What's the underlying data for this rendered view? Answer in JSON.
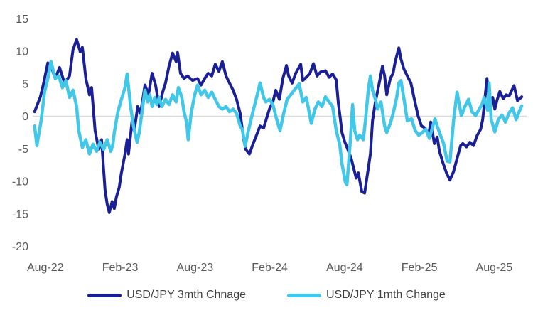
{
  "chart_data": {
    "type": "line",
    "title": "",
    "x_unit": "months since Aug-2022 (0 = Aug-22 tick)",
    "x_axis": {
      "min": -0.9,
      "max": 38.6,
      "ticks": [
        {
          "m": 0,
          "label": "Aug-22"
        },
        {
          "m": 6,
          "label": "Feb-23"
        },
        {
          "m": 12,
          "label": "Aug-23"
        },
        {
          "m": 18,
          "label": "Feb-24"
        },
        {
          "m": 24,
          "label": "Aug-24"
        },
        {
          "m": 30,
          "label": "Feb-25"
        },
        {
          "m": 36,
          "label": "Aug-25"
        }
      ]
    },
    "y_axis": {
      "min": -20,
      "max": 15,
      "step": 5,
      "tick_values": [
        15,
        10,
        5,
        0,
        -5,
        -10,
        -15,
        -20
      ],
      "gridline_values": [
        0
      ]
    },
    "legend_position": "bottom",
    "series": [
      {
        "name": "USD/JPY 3mth Chnage",
        "color": "#1A1F96",
        "stroke_width": 4,
        "points": [
          [
            -0.86,
            0.7
          ],
          [
            -0.4,
            3.0
          ],
          [
            -0.17,
            4.8
          ],
          [
            0.2,
            8.2
          ],
          [
            0.45,
            7.8
          ],
          [
            0.8,
            5.8
          ],
          [
            1.14,
            7.5
          ],
          [
            1.54,
            5.1
          ],
          [
            1.94,
            6.2
          ],
          [
            2.22,
            10.2
          ],
          [
            2.51,
            11.8
          ],
          [
            2.8,
            9.9
          ],
          [
            2.97,
            10.6
          ],
          [
            3.25,
            5.8
          ],
          [
            3.54,
            3.3
          ],
          [
            3.71,
            4.4
          ],
          [
            3.99,
            -2.2
          ],
          [
            4.28,
            -5.1
          ],
          [
            4.51,
            -3.6
          ],
          [
            4.79,
            -11.3
          ],
          [
            4.96,
            -13.5
          ],
          [
            5.13,
            -14.8
          ],
          [
            5.36,
            -13.1
          ],
          [
            5.53,
            -14.2
          ],
          [
            5.7,
            -12.4
          ],
          [
            5.93,
            -10.9
          ],
          [
            6.1,
            -8.7
          ],
          [
            6.39,
            -5.8
          ],
          [
            6.56,
            -3.6
          ],
          [
            6.67,
            -5.8
          ],
          [
            6.96,
            -0.7
          ],
          [
            7.13,
            -2.2
          ],
          [
            7.41,
            1.5
          ],
          [
            7.64,
            0.4
          ],
          [
            7.99,
            4.8
          ],
          [
            8.27,
            3.3
          ],
          [
            8.56,
            6.6
          ],
          [
            8.84,
            4.8
          ],
          [
            9.13,
            1.5
          ],
          [
            9.41,
            3.7
          ],
          [
            9.64,
            5.1
          ],
          [
            9.92,
            7.7
          ],
          [
            10.21,
            9.7
          ],
          [
            10.49,
            8.4
          ],
          [
            10.61,
            9.8
          ],
          [
            10.84,
            6.6
          ],
          [
            11.12,
            5.8
          ],
          [
            11.41,
            6.2
          ],
          [
            11.81,
            5.5
          ],
          [
            12.21,
            5.8
          ],
          [
            12.49,
            4.8
          ],
          [
            12.78,
            5.8
          ],
          [
            13.06,
            6.6
          ],
          [
            13.35,
            6.2
          ],
          [
            13.63,
            8.0
          ],
          [
            13.92,
            6.9
          ],
          [
            14.2,
            8.4
          ],
          [
            14.49,
            6.2
          ],
          [
            14.77,
            5.1
          ],
          [
            15.06,
            4.0
          ],
          [
            15.34,
            2.6
          ],
          [
            15.63,
            0.4
          ],
          [
            15.91,
            -3.6
          ],
          [
            16.08,
            -5.1
          ],
          [
            16.37,
            -5.8
          ],
          [
            16.65,
            -4.3
          ],
          [
            16.94,
            -2.9
          ],
          [
            17.22,
            -1.5
          ],
          [
            17.51,
            -1.8
          ],
          [
            17.68,
            -0.7
          ],
          [
            17.97,
            1.1
          ],
          [
            18.25,
            2.2
          ],
          [
            18.48,
            4.0
          ],
          [
            18.77,
            2.6
          ],
          [
            19.05,
            5.8
          ],
          [
            19.34,
            7.8
          ],
          [
            19.51,
            6.2
          ],
          [
            19.79,
            5.1
          ],
          [
            20.08,
            6.6
          ],
          [
            20.48,
            8.0
          ],
          [
            20.65,
            5.5
          ],
          [
            20.93,
            6.0
          ],
          [
            21.22,
            6.6
          ],
          [
            21.5,
            8.1
          ],
          [
            21.79,
            6.2
          ],
          [
            22.07,
            6.8
          ],
          [
            22.47,
            7.0
          ],
          [
            22.76,
            6.0
          ],
          [
            23.04,
            6.5
          ],
          [
            23.33,
            5.6
          ],
          [
            23.5,
            2.0
          ],
          [
            23.61,
            0.4
          ],
          [
            23.79,
            -2.5
          ],
          [
            24.01,
            -3.9
          ],
          [
            24.24,
            -5.0
          ],
          [
            24.53,
            -6.5
          ],
          [
            24.93,
            -9.5
          ],
          [
            25.1,
            -8.7
          ],
          [
            25.38,
            -11.6
          ],
          [
            25.61,
            -11.8
          ],
          [
            26.07,
            -5.8
          ],
          [
            26.24,
            -0.7
          ],
          [
            26.47,
            2.2
          ],
          [
            26.75,
            4.8
          ],
          [
            27.04,
            7.7
          ],
          [
            27.21,
            6.2
          ],
          [
            27.38,
            3.3
          ],
          [
            27.67,
            5.8
          ],
          [
            27.89,
            6.6
          ],
          [
            28.06,
            8.4
          ],
          [
            28.35,
            10.5
          ],
          [
            28.52,
            8.8
          ],
          [
            28.75,
            7.3
          ],
          [
            29.03,
            6.2
          ],
          [
            29.32,
            5.1
          ],
          [
            29.6,
            2.6
          ],
          [
            29.89,
            0.1
          ],
          [
            30.17,
            -1.5
          ],
          [
            30.46,
            -1.8
          ],
          [
            30.74,
            -2.9
          ],
          [
            30.91,
            -0.9
          ],
          [
            31.2,
            -4.2
          ],
          [
            31.43,
            -3.2
          ],
          [
            31.6,
            -5.3
          ],
          [
            31.88,
            -7.1
          ],
          [
            32.17,
            -8.7
          ],
          [
            32.45,
            -9.8
          ],
          [
            32.74,
            -8.5
          ],
          [
            33.02,
            -6.5
          ],
          [
            33.31,
            -4.5
          ],
          [
            33.48,
            -4.2
          ],
          [
            33.77,
            -4.7
          ],
          [
            34.05,
            -4.0
          ],
          [
            34.34,
            -4.5
          ],
          [
            34.62,
            -3.0
          ],
          [
            34.91,
            -2.0
          ],
          [
            35.08,
            -0.5
          ],
          [
            35.25,
            2.6
          ],
          [
            35.42,
            5.8
          ],
          [
            35.65,
            1.5
          ],
          [
            35.88,
            2.9
          ],
          [
            36.05,
            1.1
          ],
          [
            36.22,
            2.4
          ],
          [
            36.45,
            3.8
          ],
          [
            36.73,
            2.7
          ],
          [
            36.96,
            3.3
          ],
          [
            37.19,
            3.1
          ],
          [
            37.59,
            4.7
          ],
          [
            37.87,
            2.4
          ],
          [
            38.21,
            3.0
          ]
        ]
      },
      {
        "name": "USD/JPY 1mth Change",
        "color": "#41C7E8",
        "stroke_width": 4.5,
        "points": [
          [
            -0.86,
            -1.5
          ],
          [
            -0.68,
            -4.5
          ],
          [
            -0.34,
            -0.7
          ],
          [
            -0.06,
            3.7
          ],
          [
            0.23,
            6.0
          ],
          [
            0.45,
            8.4
          ],
          [
            0.8,
            5.8
          ],
          [
            1.08,
            6.2
          ],
          [
            1.37,
            4.4
          ],
          [
            1.65,
            5.5
          ],
          [
            1.94,
            2.9
          ],
          [
            2.22,
            4.0
          ],
          [
            2.51,
            1.5
          ],
          [
            2.68,
            -2.2
          ],
          [
            2.97,
            -4.8
          ],
          [
            3.25,
            -3.6
          ],
          [
            3.54,
            -5.8
          ],
          [
            3.82,
            -4.3
          ],
          [
            4.11,
            -5.4
          ],
          [
            4.39,
            -4.0
          ],
          [
            4.68,
            -5.1
          ],
          [
            4.96,
            -3.6
          ],
          [
            5.25,
            -5.4
          ],
          [
            5.42,
            -4.3
          ],
          [
            5.53,
            -2.5
          ],
          [
            5.82,
            0.7
          ],
          [
            6.1,
            2.6
          ],
          [
            6.39,
            4.4
          ],
          [
            6.56,
            6.5
          ],
          [
            6.84,
            1.5
          ],
          [
            7.07,
            -1.5
          ],
          [
            7.36,
            -4.0
          ],
          [
            7.53,
            -2.5
          ],
          [
            7.81,
            1.5
          ],
          [
            7.99,
            4.0
          ],
          [
            8.21,
            2.2
          ],
          [
            8.38,
            3.3
          ],
          [
            8.56,
            1.5
          ],
          [
            8.78,
            2.9
          ],
          [
            8.95,
            1.8
          ],
          [
            9.13,
            2.9
          ],
          [
            9.35,
            1.5
          ],
          [
            9.64,
            2.6
          ],
          [
            9.92,
            1.8
          ],
          [
            10.21,
            3.3
          ],
          [
            10.49,
            2.2
          ],
          [
            10.67,
            4.4
          ],
          [
            10.95,
            2.9
          ],
          [
            11.12,
            0.7
          ],
          [
            11.35,
            -1.1
          ],
          [
            11.46,
            -3.6
          ],
          [
            11.69,
            0.4
          ],
          [
            11.98,
            3.3
          ],
          [
            12.21,
            4.8
          ],
          [
            12.49,
            3.3
          ],
          [
            12.78,
            4.0
          ],
          [
            13.06,
            2.9
          ],
          [
            13.35,
            3.7
          ],
          [
            13.63,
            2.6
          ],
          [
            13.92,
            1.5
          ],
          [
            14.2,
            1.1
          ],
          [
            14.49,
            1.5
          ],
          [
            14.77,
            0.7
          ],
          [
            15.06,
            1.1
          ],
          [
            15.34,
            0.4
          ],
          [
            15.63,
            -1.5
          ],
          [
            15.8,
            -2.0
          ],
          [
            16.03,
            -4.6
          ],
          [
            16.25,
            -2.5
          ],
          [
            16.65,
            0.7
          ],
          [
            16.94,
            2.9
          ],
          [
            17.22,
            5.1
          ],
          [
            17.51,
            2.9
          ],
          [
            17.68,
            2.2
          ],
          [
            17.97,
            2.6
          ],
          [
            18.25,
            1.8
          ],
          [
            18.54,
            -0.4
          ],
          [
            18.82,
            -2.2
          ],
          [
            19.11,
            0.4
          ],
          [
            19.39,
            2.6
          ],
          [
            19.68,
            3.3
          ],
          [
            19.96,
            4.0
          ],
          [
            20.36,
            5.0
          ],
          [
            20.65,
            2.2
          ],
          [
            20.93,
            2.9
          ],
          [
            21.33,
            -1.1
          ],
          [
            21.62,
            1.1
          ],
          [
            21.9,
            2.2
          ],
          [
            22.19,
            1.5
          ],
          [
            22.47,
            3.0
          ],
          [
            22.76,
            2.2
          ],
          [
            23.04,
            1.5
          ],
          [
            23.33,
            -2.2
          ],
          [
            23.61,
            -4.3
          ],
          [
            23.79,
            -7.3
          ],
          [
            24.07,
            -10.2
          ],
          [
            24.19,
            -10.5
          ],
          [
            24.47,
            -3.6
          ],
          [
            24.64,
            1.8
          ],
          [
            24.81,
            -2.2
          ],
          [
            25.04,
            -3.6
          ],
          [
            25.21,
            -2.9
          ],
          [
            25.5,
            -3.6
          ],
          [
            25.67,
            -0.7
          ],
          [
            25.9,
            4.0
          ],
          [
            26.07,
            6.2
          ],
          [
            26.24,
            4.0
          ],
          [
            26.47,
            2.6
          ],
          [
            26.64,
            1.1
          ],
          [
            26.92,
            2.2
          ],
          [
            27.21,
            -1.5
          ],
          [
            27.38,
            -2.5
          ],
          [
            27.67,
            -1.1
          ],
          [
            27.89,
            0.4
          ],
          [
            28.18,
            2.9
          ],
          [
            28.35,
            5.1
          ],
          [
            28.52,
            5.5
          ],
          [
            28.8,
            2.2
          ],
          [
            29.03,
            -0.7
          ],
          [
            29.37,
            -0.4
          ],
          [
            29.66,
            -2.2
          ],
          [
            29.94,
            -2.9
          ],
          [
            30.23,
            -2.5
          ],
          [
            30.51,
            -2.0
          ],
          [
            30.8,
            -3.4
          ],
          [
            31.08,
            -1.5
          ],
          [
            31.25,
            -0.4
          ],
          [
            31.48,
            -1.8
          ],
          [
            31.94,
            -4.2
          ],
          [
            32.22,
            -6.9
          ],
          [
            32.45,
            -7.0
          ],
          [
            32.74,
            -0.7
          ],
          [
            33.02,
            3.7
          ],
          [
            33.37,
            0.1
          ],
          [
            33.65,
            1.5
          ],
          [
            33.94,
            2.6
          ],
          [
            34.22,
            0.7
          ],
          [
            34.51,
            0.1
          ],
          [
            34.79,
            1.1
          ],
          [
            35.02,
            1.8
          ],
          [
            35.19,
            2.9
          ],
          [
            35.31,
            2.0
          ],
          [
            35.48,
            0.9
          ],
          [
            35.59,
            5.1
          ],
          [
            35.76,
            -0.5
          ],
          [
            36.05,
            -2.4
          ],
          [
            36.33,
            -0.5
          ],
          [
            36.62,
            0.2
          ],
          [
            36.9,
            -0.9
          ],
          [
            37.19,
            0.5
          ],
          [
            37.47,
            1.3
          ],
          [
            37.76,
            -0.5
          ],
          [
            38.04,
            0.9
          ],
          [
            38.21,
            1.6
          ]
        ]
      }
    ]
  },
  "layout_colors": {
    "background": "#FFFFFF",
    "gridline": "#D9D9D9",
    "axis_label": "#595959",
    "legend_text": "#404040"
  }
}
